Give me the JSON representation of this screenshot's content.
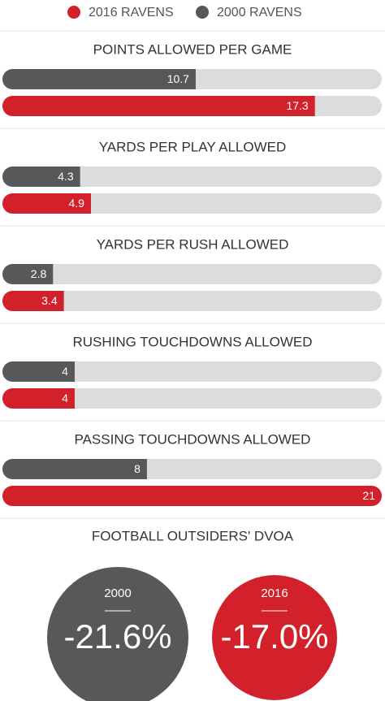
{
  "chart_data": {
    "type": "bar",
    "orientation": "horizontal",
    "categories": [
      "POINTS ALLOWED PER GAME",
      "YARDS PER PLAY ALLOWED",
      "YARDS PER RUSH ALLOWED",
      "RUSHING TOUCHDOWNS ALLOWED",
      "PASSING TOUCHDOWNS ALLOWED"
    ],
    "series": [
      {
        "name": "2016 RAVENS",
        "color": "#d3212c",
        "values": [
          17.3,
          4.9,
          3.4,
          4,
          21
        ]
      },
      {
        "name": "2000 RAVENS",
        "color": "#58585a",
        "values": [
          10.7,
          4.3,
          2.8,
          4,
          8
        ]
      }
    ],
    "xlim": [
      0,
      21
    ],
    "track_color": "#dcdcdc",
    "legend": "top"
  },
  "dvoa": {
    "title": "FOOTBALL OUTSIDERS' DVOA",
    "items": [
      {
        "label": "2000",
        "value": "-21.6%",
        "color": "#58585a"
      },
      {
        "label": "2016",
        "value": "-17.0%",
        "color": "#d3212c"
      }
    ]
  }
}
